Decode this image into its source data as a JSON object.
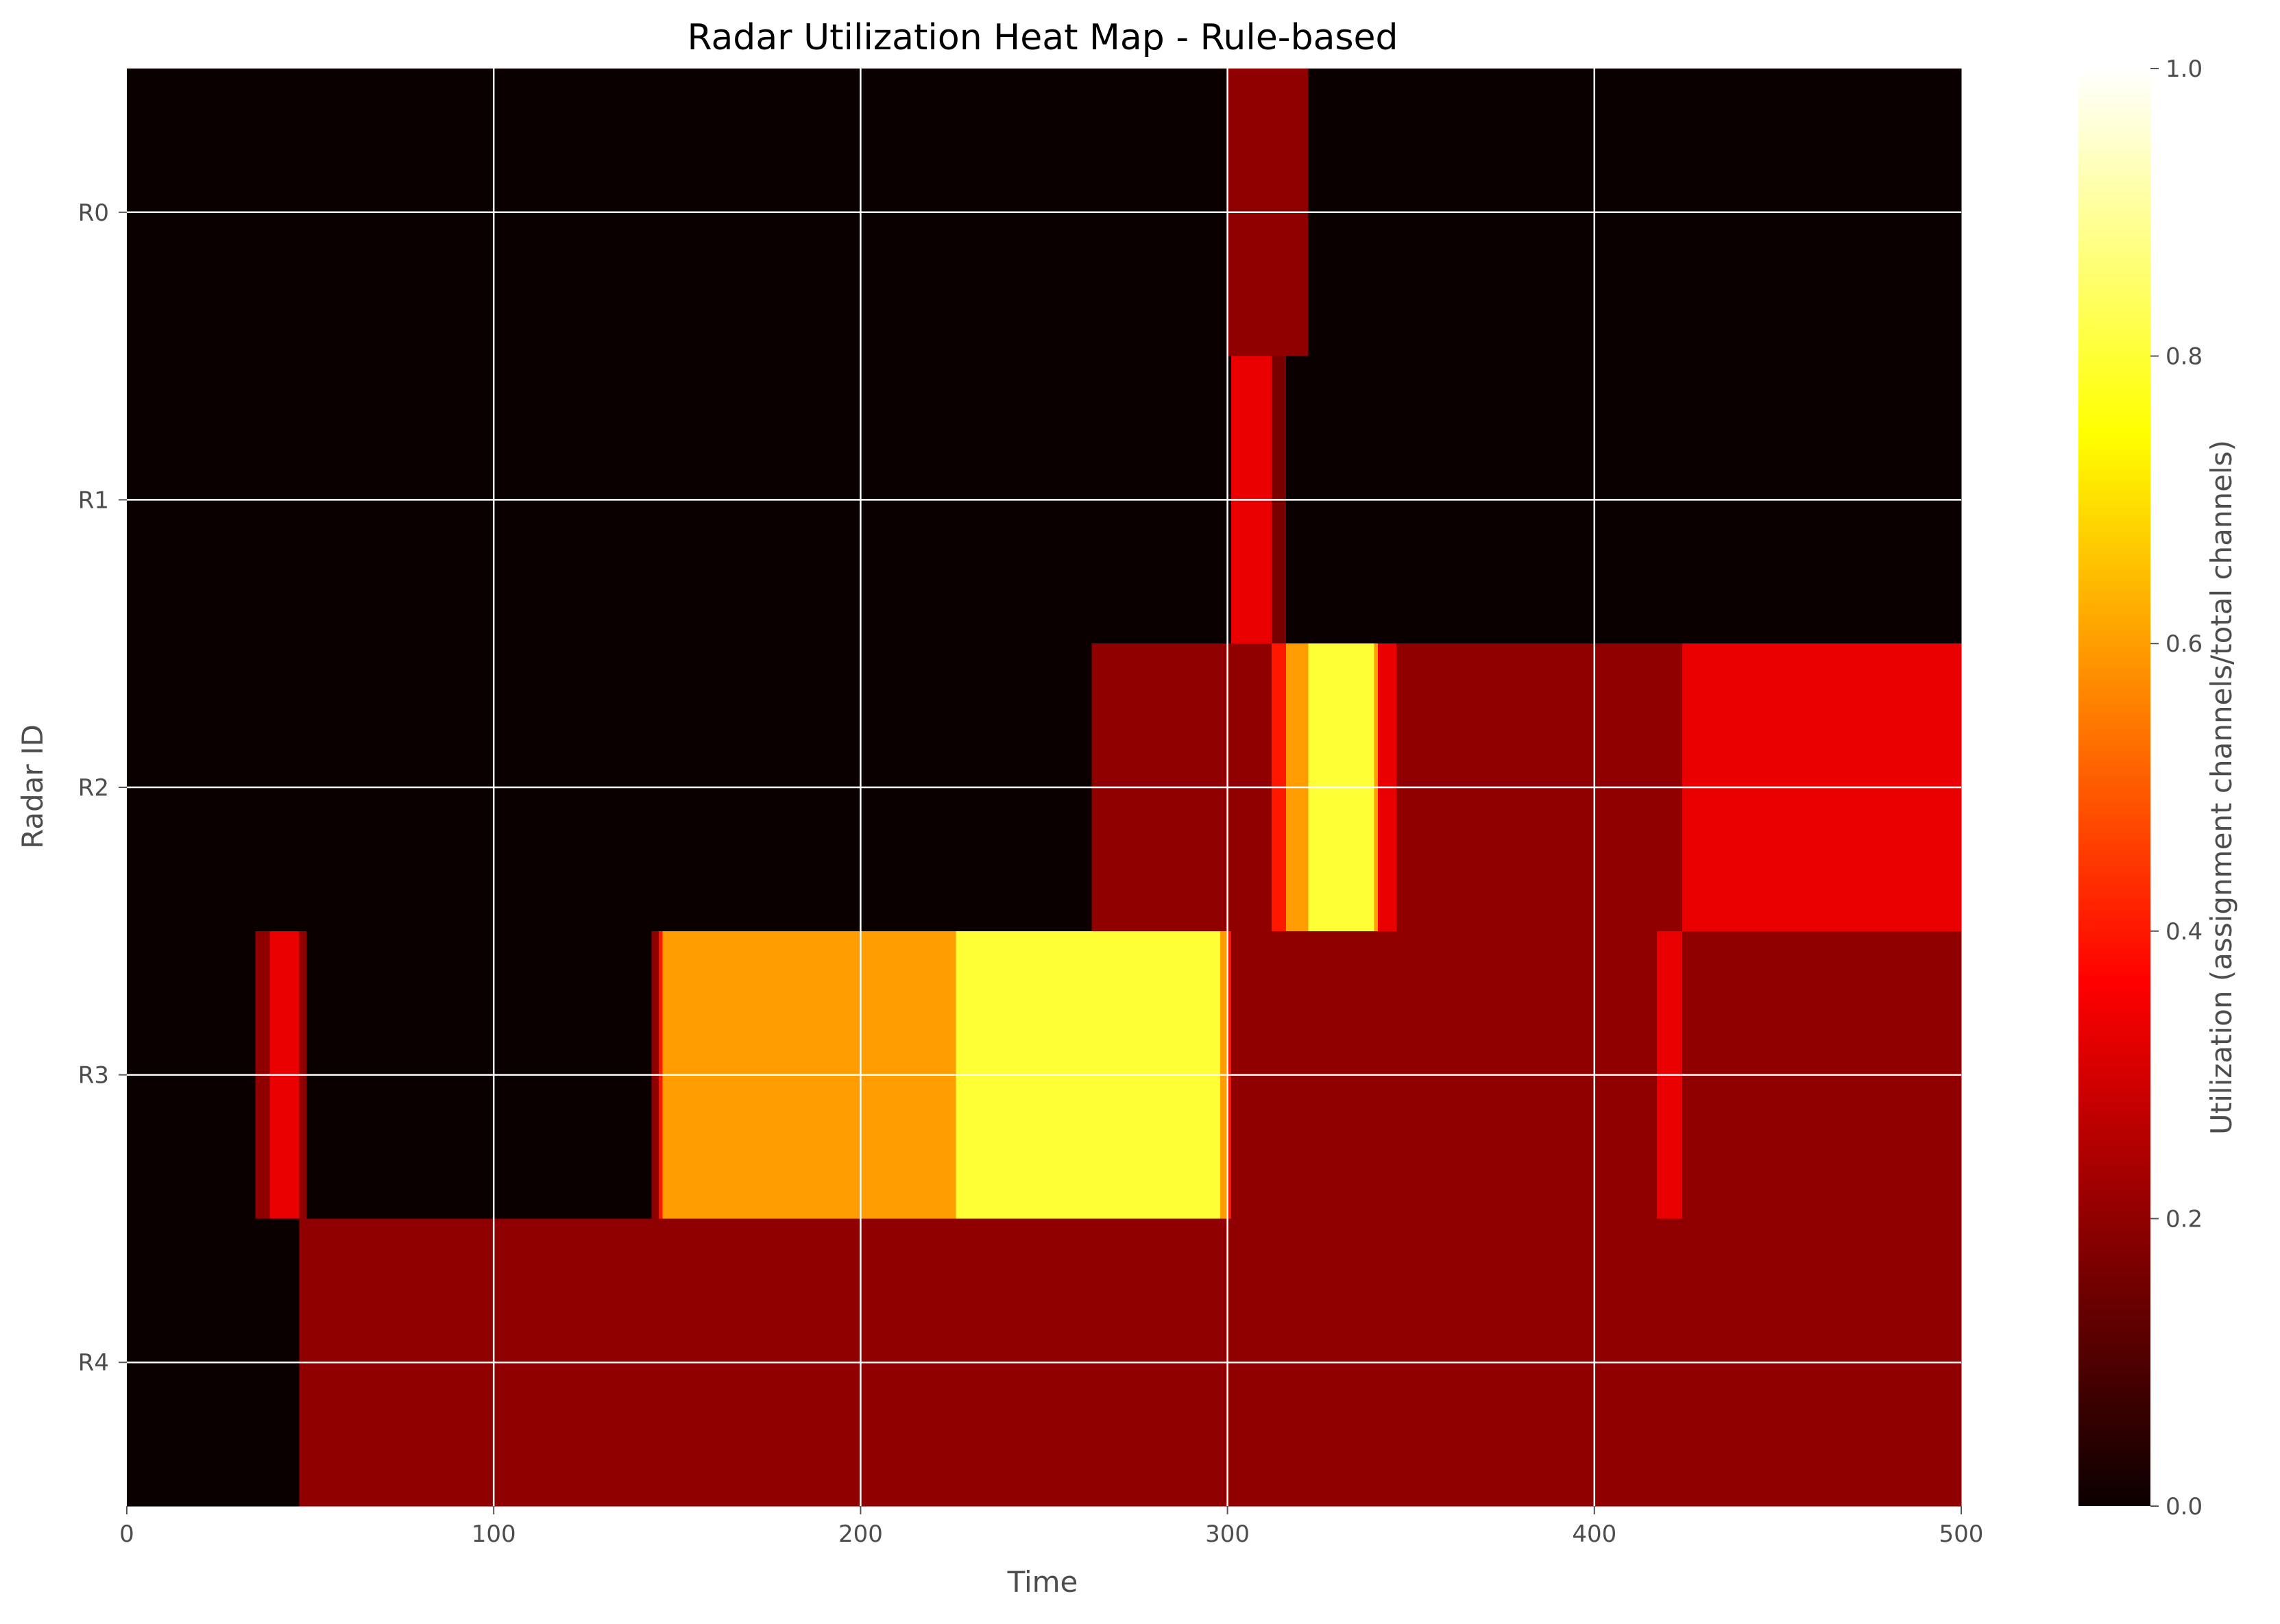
{
  "chart_data": {
    "type": "heatmap",
    "title": "Radar Utilization Heat Map - Rule-based",
    "xlabel": "Time",
    "ylabel": "Radar ID",
    "xlim": [
      0,
      500
    ],
    "x_ticks": [
      0,
      100,
      200,
      300,
      400,
      500
    ],
    "x_tick_labels": [
      "0",
      "100",
      "200",
      "300",
      "400",
      "500"
    ],
    "rows": [
      "R0",
      "R1",
      "R2",
      "R3",
      "R4"
    ],
    "grid": true,
    "colormap": "hot",
    "colorbar": {
      "label": "Utilization (assignment channels/total channels)",
      "range": [
        0,
        1
      ],
      "ticks": [
        0,
        0.2,
        0.4,
        0.6,
        0.8,
        1.0
      ],
      "tick_labels": [
        "0.0",
        "0.2",
        "0.4",
        "0.6",
        "0.8",
        "1.0"
      ]
    },
    "cells": [
      {
        "row": "R0",
        "x_start": 0,
        "x_end": 300,
        "value": 0.0
      },
      {
        "row": "R0",
        "x_start": 300,
        "x_end": 322,
        "value": 0.2
      },
      {
        "row": "R0",
        "x_start": 322,
        "x_end": 500,
        "value": 0.0
      },
      {
        "row": "R1",
        "x_start": 0,
        "x_end": 301,
        "value": 0.0
      },
      {
        "row": "R1",
        "x_start": 301,
        "x_end": 312,
        "value": 0.333
      },
      {
        "row": "R1",
        "x_start": 312,
        "x_end": 316,
        "value": 0.167
      },
      {
        "row": "R1",
        "x_start": 316,
        "x_end": 500,
        "value": 0.0
      },
      {
        "row": "R2",
        "x_start": 0,
        "x_end": 263,
        "value": 0.0
      },
      {
        "row": "R2",
        "x_start": 263,
        "x_end": 312,
        "value": 0.2
      },
      {
        "row": "R2",
        "x_start": 312,
        "x_end": 316,
        "value": 0.4
      },
      {
        "row": "R2",
        "x_start": 316,
        "x_end": 322,
        "value": 0.6
      },
      {
        "row": "R2",
        "x_start": 322,
        "x_end": 340,
        "value": 0.8
      },
      {
        "row": "R2",
        "x_start": 340,
        "x_end": 341,
        "value": 0.6
      },
      {
        "row": "R2",
        "x_start": 341,
        "x_end": 346,
        "value": 0.333
      },
      {
        "row": "R2",
        "x_start": 346,
        "x_end": 424,
        "value": 0.2
      },
      {
        "row": "R2",
        "x_start": 424,
        "x_end": 500,
        "value": 0.333
      },
      {
        "row": "R3",
        "x_start": 0,
        "x_end": 35,
        "value": 0.0
      },
      {
        "row": "R3",
        "x_start": 35,
        "x_end": 39,
        "value": 0.2
      },
      {
        "row": "R3",
        "x_start": 39,
        "x_end": 47,
        "value": 0.333
      },
      {
        "row": "R3",
        "x_start": 47,
        "x_end": 49,
        "value": 0.2
      },
      {
        "row": "R3",
        "x_start": 49,
        "x_end": 143,
        "value": 0.0
      },
      {
        "row": "R3",
        "x_start": 143,
        "x_end": 145,
        "value": 0.2
      },
      {
        "row": "R3",
        "x_start": 145,
        "x_end": 146,
        "value": 0.4
      },
      {
        "row": "R3",
        "x_start": 146,
        "x_end": 226,
        "value": 0.6
      },
      {
        "row": "R3",
        "x_start": 226,
        "x_end": 298,
        "value": 0.8
      },
      {
        "row": "R3",
        "x_start": 298,
        "x_end": 300,
        "value": 0.6
      },
      {
        "row": "R3",
        "x_start": 300,
        "x_end": 301,
        "value": 0.4
      },
      {
        "row": "R3",
        "x_start": 301,
        "x_end": 417,
        "value": 0.2
      },
      {
        "row": "R3",
        "x_start": 417,
        "x_end": 424,
        "value": 0.333
      },
      {
        "row": "R3",
        "x_start": 424,
        "x_end": 500,
        "value": 0.2
      },
      {
        "row": "R4",
        "x_start": 0,
        "x_end": 47,
        "value": 0.0
      },
      {
        "row": "R4",
        "x_start": 47,
        "x_end": 500,
        "value": 0.2
      }
    ]
  }
}
